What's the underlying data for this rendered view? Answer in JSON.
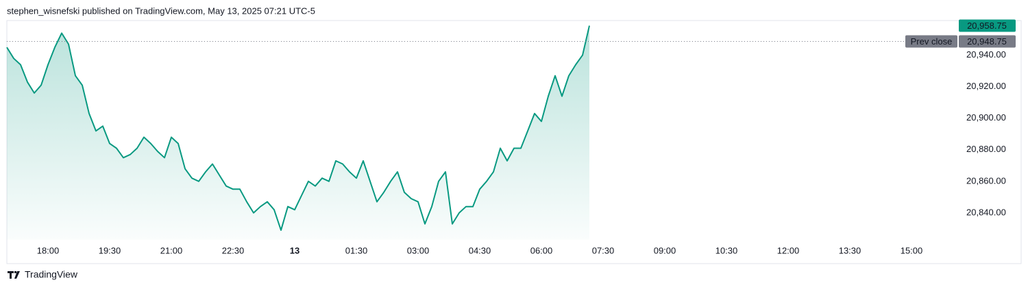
{
  "chart_data": {
    "type": "area",
    "title": "stephen_wisnefski published on TradingView.com, May 13, 2025 07:21 UTC-5",
    "brand": "TradingView",
    "x": [
      "17:00",
      "17:10",
      "17:20",
      "17:30",
      "17:40",
      "17:50",
      "18:00",
      "18:10",
      "18:20",
      "18:30",
      "18:40",
      "18:50",
      "19:00",
      "19:10",
      "19:20",
      "19:30",
      "19:40",
      "19:50",
      "20:00",
      "20:10",
      "20:20",
      "20:30",
      "20:40",
      "20:50",
      "21:00",
      "21:10",
      "21:20",
      "21:30",
      "21:40",
      "21:50",
      "22:00",
      "22:10",
      "22:20",
      "22:30",
      "22:40",
      "22:50",
      "23:00",
      "23:10",
      "23:20",
      "23:30",
      "23:40",
      "23:50",
      "00:00",
      "00:10",
      "00:20",
      "00:30",
      "00:40",
      "00:50",
      "01:00",
      "01:10",
      "01:20",
      "01:30",
      "01:40",
      "01:50",
      "02:00",
      "02:10",
      "02:20",
      "02:30",
      "02:40",
      "02:50",
      "03:00",
      "03:10",
      "03:20",
      "03:30",
      "03:40",
      "03:50",
      "04:00",
      "04:10",
      "04:20",
      "04:30",
      "04:40",
      "04:50",
      "05:00",
      "05:10",
      "05:20",
      "05:30",
      "05:40",
      "05:50",
      "06:00",
      "06:10",
      "06:20",
      "06:30",
      "06:40",
      "06:50",
      "07:00",
      "07:10"
    ],
    "series": [
      {
        "color": "#089981",
        "values": [
          20945,
          20938,
          20934,
          20923,
          20916,
          20921,
          20934,
          20945,
          20954,
          20947,
          20927,
          20921,
          20903,
          20892,
          20895,
          20884,
          20881,
          20875,
          20877,
          20881,
          20888,
          20884,
          20879,
          20875,
          20888,
          20884,
          20868,
          20862,
          20860,
          20866,
          20871,
          20864,
          20857,
          20855,
          20855,
          20847,
          20840,
          20844,
          20847,
          20842,
          20829,
          20844,
          20842,
          20851,
          20860,
          20857,
          20862,
          20860,
          20873,
          20871,
          20866,
          20862,
          20873,
          20860,
          20847,
          20853,
          20860,
          20866,
          20853,
          20849,
          20847,
          20833,
          20844,
          20860,
          20866,
          20833,
          20840,
          20844,
          20844,
          20855,
          20860,
          20866,
          20881,
          20873,
          20881,
          20881,
          20892,
          20903,
          20898,
          20914,
          20927,
          20914,
          20927,
          20934,
          20940,
          20958.75
        ]
      }
    ],
    "xlim": [
      "17:00",
      "16:05"
    ],
    "xticks": [
      "18:00",
      "19:30",
      "21:00",
      "22:30",
      "13",
      "01:30",
      "03:00",
      "04:30",
      "06:00",
      "07:30",
      "09:00",
      "10:30",
      "12:00",
      "13:30",
      "15:00"
    ],
    "ylim": [
      20823,
      20962
    ],
    "yticks": [
      {
        "value": 20840,
        "label": "20,840.00"
      },
      {
        "value": 20860,
        "label": "20,860.00"
      },
      {
        "value": 20880,
        "label": "20,880.00"
      },
      {
        "value": 20900,
        "label": "20,900.00"
      },
      {
        "value": 20920,
        "label": "20,920.00"
      },
      {
        "value": 20940,
        "label": "20,940.00"
      }
    ],
    "last_price": {
      "value": 20958.75,
      "label": "20,958.75",
      "color": "#089981"
    },
    "prev_close": {
      "name": "Prev close",
      "value": 20948.75,
      "label": "20,948.75",
      "color": "#787b86"
    }
  }
}
